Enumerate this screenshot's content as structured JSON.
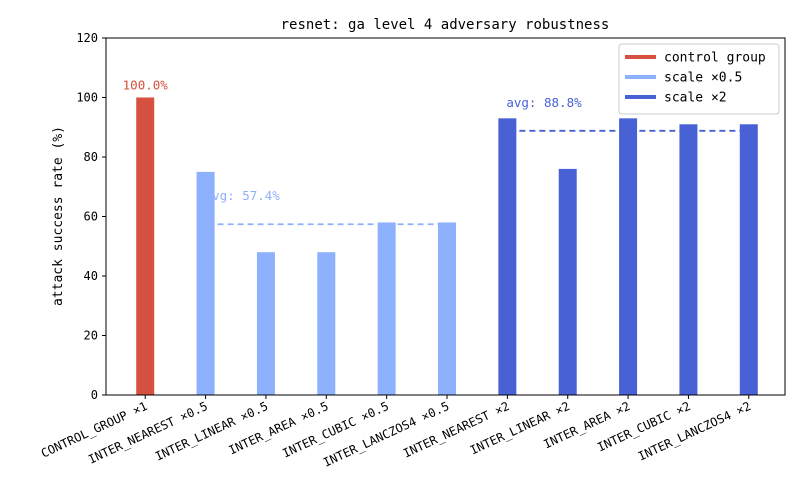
{
  "chart_data": {
    "type": "bar",
    "title": "resnet: ga level 4 adversary robustness",
    "xlabel": "",
    "ylabel": "attack success rate (%)",
    "ylim": [
      0,
      120
    ],
    "yticks": [
      0,
      20,
      40,
      60,
      80,
      100,
      120
    ],
    "grid": false,
    "legend_position": "top-right",
    "categories": [
      "CONTROL_GROUP ×1",
      "INTER_NEAREST ×0.5",
      "INTER_LINEAR ×0.5",
      "INTER_AREA ×0.5",
      "INTER_CUBIC ×0.5",
      "INTER_LANCZOS4 ×0.5",
      "INTER_NEAREST ×2",
      "INTER_LINEAR ×2",
      "INTER_AREA ×2",
      "INTER_CUBIC ×2",
      "INTER_LANCZOS4 ×2"
    ],
    "values": [
      100,
      75,
      48,
      48,
      58,
      58,
      93,
      76,
      93,
      91,
      91
    ],
    "groups": [
      "control",
      "half",
      "half",
      "half",
      "half",
      "half",
      "double",
      "double",
      "double",
      "double",
      "double"
    ],
    "series": [
      {
        "key": "control",
        "name": "control group",
        "color": "#d6513f"
      },
      {
        "key": "half",
        "name": "scale ×0.5",
        "color": "#8eb1fd"
      },
      {
        "key": "double",
        "name": "scale ×2",
        "color": "#4862d6"
      }
    ],
    "bar_labels": [
      {
        "index": 0,
        "text": "100.0%",
        "value": 100,
        "color": "#d6513f"
      }
    ],
    "averages": [
      {
        "group": "half",
        "value": 57.4,
        "text": "avg: 57.4%",
        "from": 1,
        "to": 5,
        "color": "#8eb1fd"
      },
      {
        "group": "double",
        "value": 88.8,
        "text": "avg: 88.8%",
        "from": 6,
        "to": 10,
        "color": "#4862d6"
      }
    ]
  }
}
